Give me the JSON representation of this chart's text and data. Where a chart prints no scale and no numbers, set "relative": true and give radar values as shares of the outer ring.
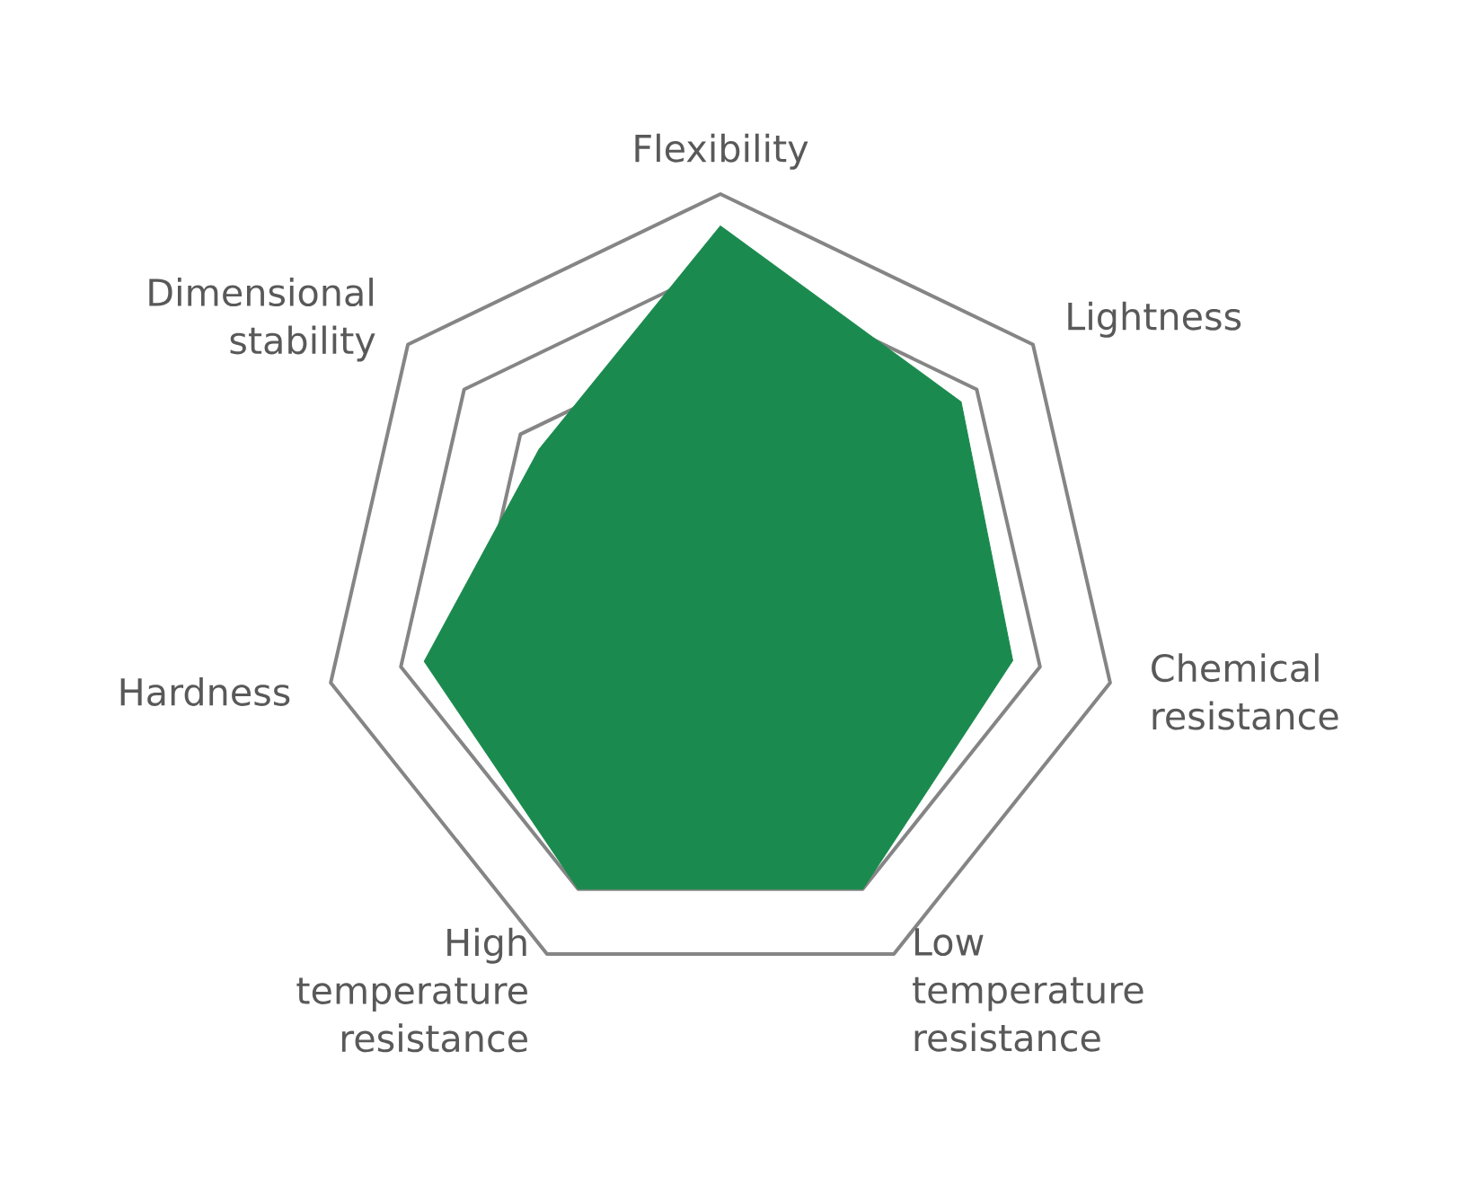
{
  "chart_data": {
    "type": "radar",
    "relative": true,
    "categories": [
      "Flexibility",
      "Lightness",
      "Chemical resistance",
      "Low temperature resistance",
      "High temperature resistance",
      "Hardness",
      "Dimensional stability"
    ],
    "grid": true,
    "series": [
      {
        "color": "#1b8a4e",
        "values": [
          0.92,
          0.77,
          0.75,
          0.82,
          0.82,
          0.76,
          0.58
        ]
      }
    ]
  }
}
